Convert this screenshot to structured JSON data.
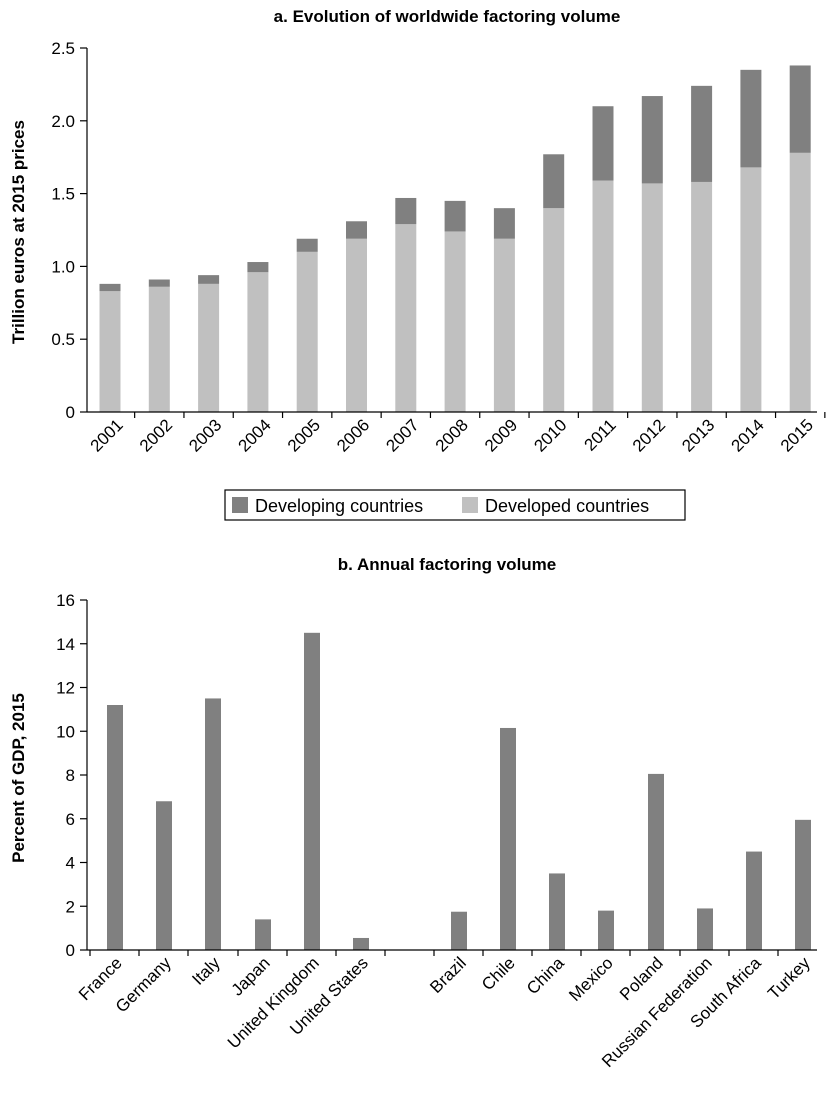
{
  "colors": {
    "developing": "#808080",
    "developed": "#c0c0c0",
    "single": "#808080",
    "axis": "#000000"
  },
  "chart_data": [
    {
      "type": "bar",
      "stacked": true,
      "title": "a. Evolution of worldwide factoring volume",
      "xlabel": "",
      "ylabel": "Trillion euros at 2015 prices",
      "ylim": [
        0,
        2.5
      ],
      "yticks": [
        "0",
        "0.5",
        "1.0",
        "1.5",
        "2.0",
        "2.5"
      ],
      "categories": [
        "2001",
        "2002",
        "2003",
        "2004",
        "2005",
        "2006",
        "2007",
        "2008",
        "2009",
        "2010",
        "2011",
        "2012",
        "2013",
        "2014",
        "2015"
      ],
      "series": [
        {
          "name": "Developed countries",
          "values": [
            0.83,
            0.86,
            0.88,
            0.96,
            1.1,
            1.19,
            1.29,
            1.24,
            1.19,
            1.4,
            1.59,
            1.57,
            1.58,
            1.68,
            1.78
          ]
        },
        {
          "name": "Developing countries",
          "values": [
            0.05,
            0.05,
            0.06,
            0.07,
            0.09,
            0.12,
            0.18,
            0.21,
            0.21,
            0.37,
            0.51,
            0.6,
            0.66,
            0.67,
            0.6
          ]
        }
      ],
      "legend": {
        "placement": "bottom",
        "entries": [
          "Developing countries",
          "Developed countries"
        ]
      }
    },
    {
      "type": "bar",
      "title": "b. Annual factoring volume",
      "xlabel": "",
      "ylabel": "Percent of GDP, 2015",
      "ylim": [
        0,
        16
      ],
      "yticks": [
        "0",
        "2",
        "4",
        "6",
        "8",
        "10",
        "12",
        "14",
        "16"
      ],
      "categories": [
        "France",
        "Germany",
        "Italy",
        "Japan",
        "United Kingdom",
        "United States",
        "Brazil",
        "Chile",
        "China",
        "Mexico",
        "Poland",
        "Russian Federation",
        "South Africa",
        "Turkey"
      ],
      "values": [
        11.2,
        6.8,
        11.5,
        1.4,
        14.5,
        0.55,
        1.75,
        10.15,
        3.5,
        1.8,
        8.05,
        1.9,
        4.5,
        5.95
      ]
    }
  ]
}
